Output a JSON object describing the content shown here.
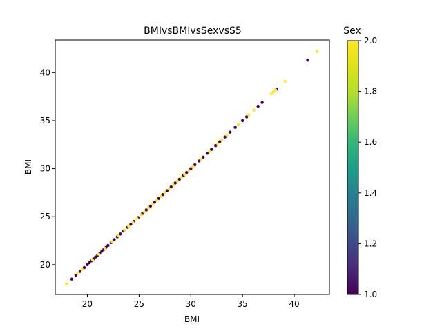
{
  "chart_data": {
    "type": "scatter",
    "title": "BMIvsBMIvsSexvsS5",
    "xlabel": "BMI",
    "ylabel": "BMI",
    "xlim": [
      16.9,
      43.4
    ],
    "ylim": [
      16.9,
      43.4
    ],
    "x_ticks": [
      "20",
      "25",
      "30",
      "35",
      "40"
    ],
    "y_ticks": [
      "20",
      "25",
      "30",
      "35",
      "40"
    ],
    "colorbar": {
      "label": "Sex",
      "range": [
        1.0,
        2.0
      ],
      "ticks": [
        "1.0",
        "1.2",
        "1.4",
        "1.6",
        "1.8",
        "2.0"
      ],
      "colormap": "viridis"
    },
    "series": [
      {
        "sex": 1,
        "color": "#440154",
        "x": [
          18.5,
          18.9,
          19.3,
          19.7,
          20.0,
          20.2,
          20.4,
          20.6,
          20.8,
          21.0,
          21.2,
          21.4,
          21.6,
          21.8,
          22.0,
          22.3,
          22.6,
          22.9,
          23.2,
          23.5,
          23.9,
          24.2,
          24.5,
          24.9,
          25.3,
          25.7,
          26.1,
          26.5,
          26.9,
          27.3,
          27.7,
          28.1,
          28.5,
          28.9,
          29.3,
          29.6,
          30.0,
          30.4,
          30.8,
          31.2,
          31.6,
          32.0,
          32.4,
          32.8,
          33.3,
          33.8,
          34.3,
          35.0,
          35.4,
          36.5,
          36.9,
          38.3,
          41.3
        ],
        "y": [
          18.5,
          18.9,
          19.3,
          19.7,
          20.0,
          20.2,
          20.4,
          20.6,
          20.8,
          21.0,
          21.2,
          21.4,
          21.6,
          21.8,
          22.0,
          22.3,
          22.6,
          22.9,
          23.2,
          23.5,
          23.9,
          24.2,
          24.5,
          24.9,
          25.3,
          25.7,
          26.1,
          26.5,
          26.9,
          27.3,
          27.7,
          28.1,
          28.5,
          28.9,
          29.3,
          29.6,
          30.0,
          30.4,
          30.8,
          31.2,
          31.6,
          32.0,
          32.4,
          32.8,
          33.3,
          33.8,
          34.3,
          35.0,
          35.4,
          36.5,
          36.9,
          38.3,
          41.3
        ]
      },
      {
        "sex": 2,
        "color": "#fde725",
        "x": [
          18.0,
          19.1,
          19.5,
          20.5,
          21.1,
          21.7,
          22.4,
          23.0,
          23.6,
          24.0,
          24.4,
          24.8,
          25.2,
          25.5,
          25.9,
          26.3,
          26.7,
          27.1,
          27.5,
          27.9,
          28.3,
          28.7,
          29.1,
          29.4,
          29.8,
          30.2,
          31.0,
          31.8,
          32.6,
          33.0,
          33.5,
          34.6,
          35.6,
          36.1,
          37.8,
          38.0,
          38.2,
          39.1,
          42.2
        ],
        "y": [
          18.0,
          19.1,
          19.5,
          20.5,
          21.1,
          21.7,
          22.4,
          23.0,
          23.6,
          24.0,
          24.4,
          24.8,
          25.2,
          25.5,
          25.9,
          26.3,
          26.7,
          27.1,
          27.5,
          27.9,
          28.3,
          28.7,
          29.1,
          29.4,
          29.8,
          30.2,
          31.0,
          31.8,
          32.6,
          33.0,
          33.5,
          34.6,
          35.6,
          36.1,
          37.8,
          38.0,
          38.2,
          39.1,
          42.2
        ]
      }
    ]
  }
}
